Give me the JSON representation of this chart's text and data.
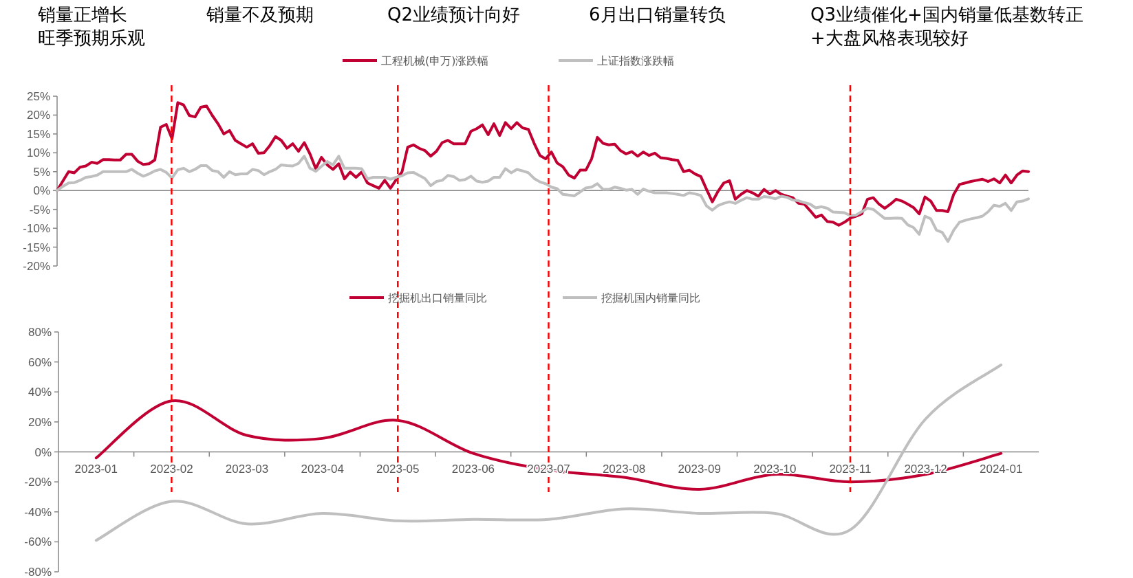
{
  "chart_data": [
    {
      "type": "line",
      "annotations": [
        "销量正增长",
        "旺季预期乐观",
        "销量不及预期",
        "Q2业绩预计向好",
        "6月出口销量转负",
        "Q3业绩催化+国内销量低基数转正",
        "+大盘风格表现较好"
      ],
      "legend": "top",
      "tick_labels": "y",
      "categories": [
        null,
        null,
        null,
        null,
        null,
        null,
        null,
        null,
        null,
        null,
        null,
        null,
        null,
        null,
        null,
        null,
        null,
        null,
        null,
        null,
        null,
        null,
        null,
        null,
        null,
        null,
        null,
        null,
        null,
        null,
        null,
        null,
        null,
        null,
        null,
        null,
        null,
        null,
        null,
        null,
        null,
        null,
        null,
        null,
        null,
        null,
        null,
        null,
        null,
        null,
        null,
        null,
        null,
        null,
        null,
        null,
        null,
        null,
        null,
        null,
        null,
        null,
        null,
        null,
        null,
        null,
        null,
        null,
        null,
        null,
        null,
        null,
        null,
        null,
        null,
        null,
        null,
        null,
        null,
        null,
        null,
        null,
        null,
        null,
        null,
        null,
        null,
        null,
        null,
        null,
        null,
        null,
        null,
        null,
        null,
        null,
        null,
        null,
        null,
        null,
        null,
        null,
        null,
        null,
        null,
        null,
        null,
        null,
        null,
        null,
        null,
        null,
        null,
        null,
        null,
        null,
        null,
        null,
        null,
        null,
        null,
        null,
        null,
        null,
        null,
        null,
        null,
        null,
        null,
        null,
        null,
        null,
        null,
        null,
        null,
        null,
        null,
        null,
        null,
        null,
        null,
        null,
        null,
        null,
        null,
        null,
        null,
        null,
        null,
        null,
        null,
        null,
        null,
        null,
        null,
        null,
        null,
        null,
        null,
        null,
        null,
        null,
        null,
        null,
        null,
        null,
        null,
        null,
        null,
        null
      ],
      "ylim": [
        -20,
        25
      ],
      "yticks": [
        {
          "value": -20,
          "label": "-20%"
        },
        {
          "value": -15,
          "label": "-15%"
        },
        {
          "value": -10,
          "label": "-10%"
        },
        {
          "value": -5,
          "label": "-5%"
        },
        {
          "value": 0,
          "label": "0%"
        },
        {
          "value": 5,
          "label": "5%"
        },
        {
          "value": 10,
          "label": "10%"
        },
        {
          "value": 15,
          "label": "15%"
        },
        {
          "value": 20,
          "label": "20%"
        },
        {
          "value": 25,
          "label": "25%"
        }
      ],
      "series": [
        {
          "name": "工程机械(申万)涨跌幅",
          "color": "#c00033",
          "values": [
            0,
            2.5,
            5.0,
            4.7,
            6.2,
            6.5,
            7.5,
            7.2,
            8.2,
            8.2,
            8.1,
            8.1,
            9.6,
            9.6,
            7.8,
            6.9,
            7.1,
            8.1,
            16.8,
            17.5,
            13.7,
            23.3,
            22.7,
            19.9,
            19.5,
            22.1,
            22.4,
            19.9,
            17.7,
            15.0,
            15.9,
            13.3,
            12.4,
            11.5,
            12.4,
            9.9,
            10.0,
            11.9,
            14.3,
            13.3,
            11.2,
            12.4,
            10.4,
            12.7,
            9.7,
            5.8,
            8.8,
            6.8,
            5.6,
            7.1,
            3.1,
            4.9,
            3.5,
            4.9,
            2.0,
            1.3,
            0.6,
            2.7,
            0.6,
            2.9,
            4.9,
            11.5,
            12.1,
            11.2,
            10.6,
            9.1,
            10.4,
            12.7,
            13.3,
            12.4,
            12.4,
            12.4,
            15.7,
            16.4,
            17.4,
            14.8,
            17.7,
            14.6,
            18.0,
            16.4,
            18.0,
            16.6,
            16.2,
            12.5,
            9.3,
            8.4,
            10.2,
            7.3,
            6.3,
            4.1,
            3.3,
            5.4,
            5.4,
            8.4,
            14.1,
            12.5,
            12.1,
            12.3,
            10.6,
            9.7,
            10.3,
            9.1,
            10.2,
            9.3,
            9.9,
            8.7,
            8.5,
            8.2,
            8.0,
            5.0,
            5.4,
            4.4,
            3.7,
            0.3,
            -3.0,
            -0.2,
            2.0,
            2.6,
            -2.3,
            -1.0,
            0,
            -0.6,
            -1.5,
            0.3,
            -0.9,
            0,
            -1.0,
            -1.5,
            -1.9,
            -3.4,
            -3.6,
            -5.3,
            -7.1,
            -6.5,
            -8.2,
            -8.4,
            -9.2,
            -8.4,
            -7.3,
            -6.8,
            -6.2,
            -2.3,
            -1.9,
            -3.6,
            -4.7,
            -3.6,
            -2.3,
            -2.8,
            -3.6,
            -4.5,
            -6.2,
            -1.7,
            -2.8,
            -5.3,
            -5.3,
            -5.6,
            -1.0,
            1.6,
            2.0,
            2.4,
            2.7,
            3.0,
            2.4,
            3.1,
            2.0,
            4.1,
            2.0,
            4.1,
            5.2,
            5.0
          ]
        },
        {
          "name": "上证指数涨跌幅",
          "color": "#bfbfbf",
          "values": [
            0,
            1.1,
            2.0,
            2.1,
            2.7,
            3.5,
            3.7,
            4.1,
            5.0,
            5.0,
            5.0,
            5.0,
            5.0,
            5.6,
            4.6,
            3.8,
            4.4,
            5.2,
            5.6,
            4.8,
            3.3,
            5.5,
            5.9,
            5.0,
            5.6,
            6.6,
            6.6,
            5.3,
            5.0,
            3.5,
            5.0,
            4.2,
            4.4,
            4.4,
            5.6,
            5.3,
            4.2,
            5.0,
            5.6,
            6.8,
            6.6,
            6.5,
            7.2,
            9.1,
            5.9,
            5.1,
            6.4,
            7.7,
            6.8,
            9.1,
            5.9,
            5.9,
            5.9,
            5.8,
            3.1,
            3.5,
            3.5,
            3.5,
            3.0,
            3.5,
            3.9,
            4.7,
            4.8,
            4.0,
            3.2,
            1.3,
            2.4,
            2.7,
            4.0,
            3.7,
            2.7,
            2.9,
            3.8,
            2.5,
            2.2,
            2.5,
            3.5,
            3.5,
            5.8,
            4.7,
            5.6,
            5.2,
            4.7,
            3.2,
            2.3,
            1.8,
            0.9,
            0.5,
            -1.0,
            -1.2,
            -1.4,
            -0.4,
            0.7,
            0.9,
            1.8,
            0.3,
            0.3,
            0.9,
            0.6,
            0.1,
            0.3,
            -1.0,
            0.4,
            -0.2,
            -0.6,
            -0.6,
            -0.6,
            -0.8,
            -1.0,
            -1.3,
            -0.6,
            -0.9,
            -1.3,
            -4.1,
            -5.2,
            -4.0,
            -3.4,
            -3.0,
            -3.4,
            -2.6,
            -1.9,
            -2.3,
            -2.3,
            -1.6,
            -1.8,
            -2.2,
            -1.5,
            -1.8,
            -2.5,
            -2.7,
            -3.2,
            -3.6,
            -4.6,
            -4.3,
            -4.7,
            -5.7,
            -5.8,
            -5.9,
            -6.6,
            -6.5,
            -5.6,
            -4.7,
            -5.0,
            -6.2,
            -7.4,
            -7.4,
            -7.3,
            -7.4,
            -9.1,
            -9.8,
            -11.6,
            -6.8,
            -7.5,
            -10.5,
            -11.1,
            -13.5,
            -10.5,
            -8.4,
            -7.9,
            -7.5,
            -7.2,
            -6.8,
            -5.6,
            -3.9,
            -4.2,
            -3.4,
            -5.3,
            -3.0,
            -2.8,
            -2.2
          ]
        }
      ]
    },
    {
      "type": "line",
      "legend": "top",
      "categories": [
        "2023-01",
        "2023-02",
        "2023-03",
        "2023-04",
        "2023-05",
        "2023-06",
        "2023-07",
        "2023-08",
        "2023-09",
        "2023-10",
        "2023-11",
        "2023-12",
        "2024-01"
      ],
      "ylim": [
        -80,
        80
      ],
      "yticks": [
        {
          "value": -80,
          "label": "-80%"
        },
        {
          "value": -60,
          "label": "-60%"
        },
        {
          "value": -40,
          "label": "-40%"
        },
        {
          "value": -20,
          "label": "-20%"
        },
        {
          "value": 0,
          "label": "0%"
        },
        {
          "value": 20,
          "label": "20%"
        },
        {
          "value": 40,
          "label": "40%"
        },
        {
          "value": 60,
          "label": "60%"
        },
        {
          "value": 80,
          "label": "80%"
        }
      ],
      "ref_lines": [
        {
          "axis": "x",
          "value": "2023-02",
          "color": "#ff0000",
          "line_style": "dashed"
        },
        {
          "axis": "x",
          "value": "2023-05",
          "color": "#ff0000",
          "line_style": "dashed"
        },
        {
          "axis": "x",
          "value": "2023-07",
          "color": "#ff0000",
          "line_style": "dashed"
        },
        {
          "axis": "x",
          "value": "2023-11",
          "color": "#ff0000",
          "line_style": "dashed"
        }
      ],
      "series": [
        {
          "name": "挖掘机出口销量同比",
          "color": "#c00033",
          "values": [
            -4,
            34,
            11,
            9,
            21,
            -1,
            -12,
            -17,
            -25,
            -15,
            -20,
            -15,
            -1
          ]
        },
        {
          "name": "挖掘机国内销量同比",
          "color": "#bfbfbf",
          "values": [
            -59,
            -33,
            -48,
            -41,
            -46,
            -45,
            -45,
            -38,
            -41,
            -41,
            -52,
            22,
            58
          ]
        }
      ]
    }
  ]
}
